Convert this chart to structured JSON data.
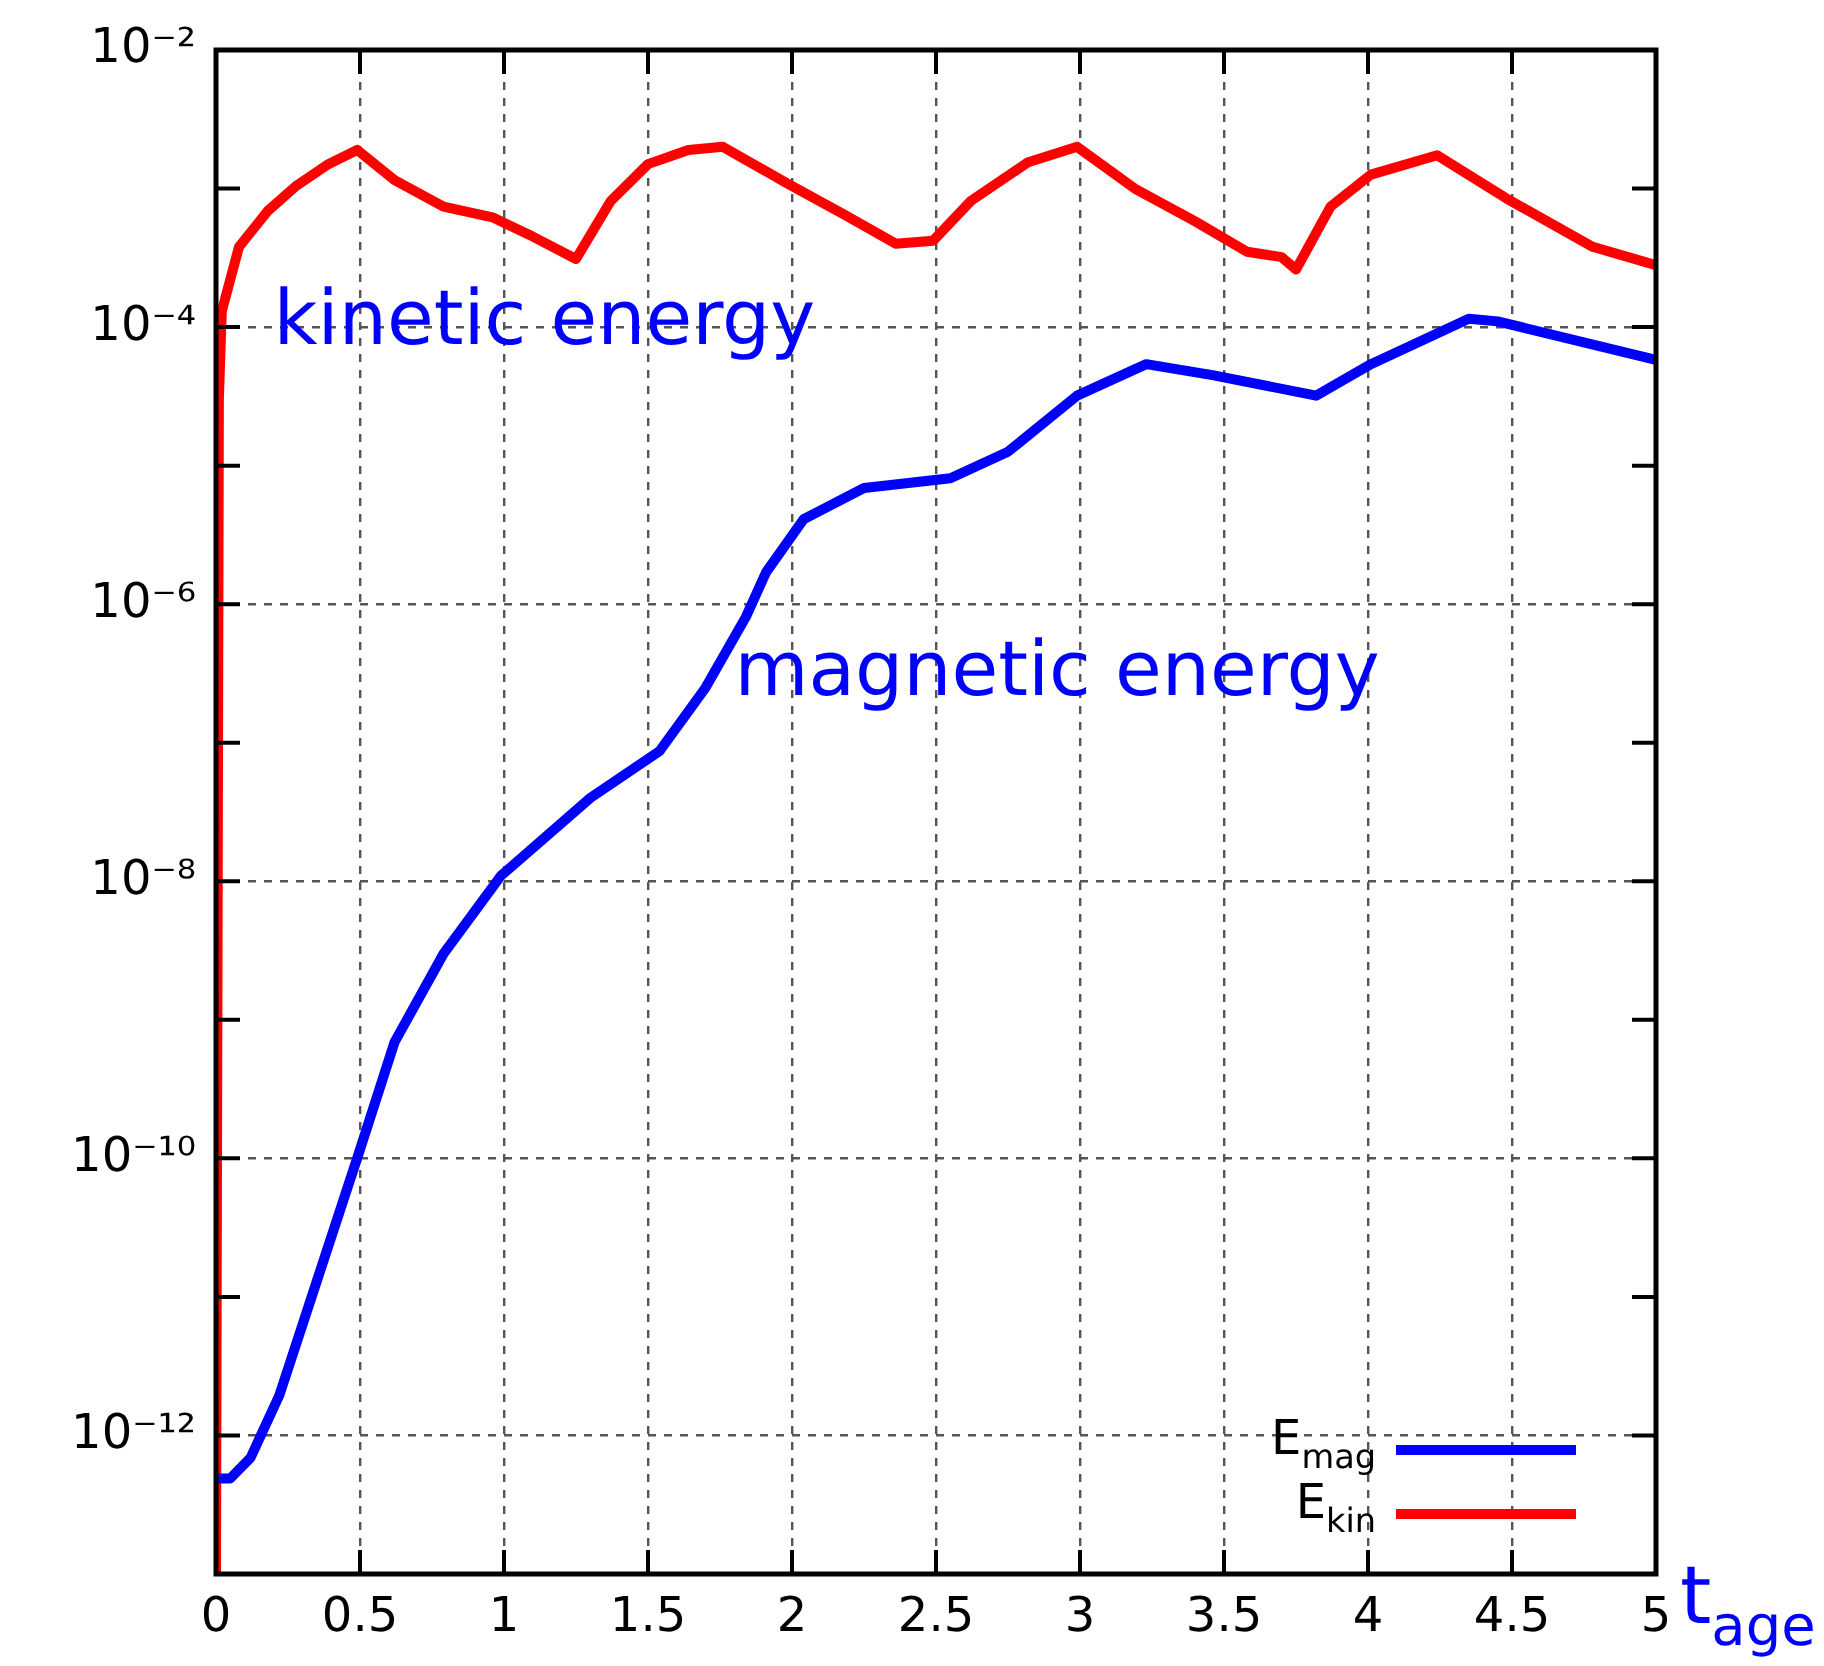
{
  "chart_data": {
    "type": "line",
    "xlabel": "t$_{age}$",
    "log": "y",
    "grid": true,
    "legend": "bottom right",
    "marker": "none",
    "line_style": "solid",
    "xlim": [
      0,
      5
    ],
    "xticks": [
      0,
      0.5,
      1,
      1.5,
      2,
      2.5,
      3,
      3.5,
      4,
      4.5,
      5
    ],
    "ylim": [
      1e-13,
      0.01
    ],
    "yticks": [
      {
        "value": 0.01,
        "label": "10⁻²"
      },
      {
        "value": 0.001,
        "label": null
      },
      {
        "value": 0.0001,
        "label": "10⁻⁴"
      },
      {
        "value": 1e-05,
        "label": null
      },
      {
        "value": 1e-06,
        "label": "10⁻⁶"
      },
      {
        "value": 1e-07,
        "label": null
      },
      {
        "value": 1e-08,
        "label": "10⁻⁸"
      },
      {
        "value": 1e-09,
        "label": null
      },
      {
        "value": 1e-10,
        "label": "10⁻¹⁰"
      },
      {
        "value": 1e-11,
        "label": null
      },
      {
        "value": 1e-12,
        "label": "10⁻¹²"
      },
      {
        "value": 1e-13,
        "label": null
      }
    ],
    "series": [
      {
        "name": "E$_{mag}$",
        "color": "#0000ff",
        "x": [
          0,
          0.05,
          0.12,
          0.22,
          0.35,
          0.49,
          0.62,
          0.79,
          0.99,
          1.3,
          1.54,
          1.7,
          1.84,
          1.91,
          2.04,
          2.25,
          2.55,
          2.75,
          2.99,
          3.23,
          3.46,
          3.82,
          4.01,
          4.35,
          4.45,
          5
        ],
        "values": [
          4.9e-13,
          4.9e-13,
          6.9e-13,
          1.95e-12,
          1.3e-11,
          1e-10,
          6.9e-10,
          3e-09,
          1.1e-08,
          4e-08,
          8.7e-08,
          2.5e-07,
          8.1e-07,
          1.7e-06,
          4.1e-06,
          6.9e-06,
          8.1e-06,
          1.26e-05,
          3.2e-05,
          5.4e-05,
          4.5e-05,
          3.2e-05,
          5.4e-05,
          0.000115,
          0.00011,
          5.8e-05
        ]
      },
      {
        "name": "E$_{kin}$",
        "color": "#ff0000",
        "x": [
          0,
          0.01,
          0.02,
          0.08,
          0.18,
          0.28,
          0.39,
          0.49,
          0.62,
          0.79,
          0.96,
          1.1,
          1.25,
          1.37,
          1.5,
          1.64,
          1.76,
          1.98,
          2.18,
          2.36,
          2.49,
          2.62,
          2.82,
          2.99,
          3.19,
          3.4,
          3.58,
          3.7,
          3.75,
          3.87,
          4.01,
          4.24,
          4.48,
          4.78,
          5
        ],
        "values": [
          1e-13,
          3e-05,
          0.00013,
          0.00038,
          0.00069,
          0.00105,
          0.0015,
          0.0019,
          0.00115,
          0.00074,
          0.00062,
          0.00045,
          0.00031,
          0.00081,
          0.0015,
          0.0019,
          0.002,
          0.0011,
          0.00065,
          0.0004,
          0.00042,
          0.00081,
          0.00155,
          0.002,
          0.001,
          0.00058,
          0.00035,
          0.00032,
          0.00026,
          0.00074,
          0.00126,
          0.00174,
          0.00085,
          0.00038,
          0.00028
        ]
      }
    ],
    "annotations": [
      "kinetic energy",
      "magnetic energy"
    ]
  }
}
